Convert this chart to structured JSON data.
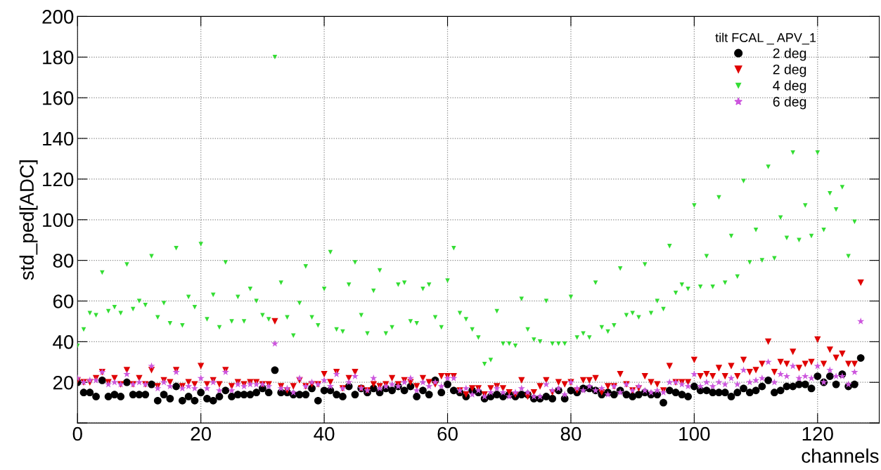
{
  "chart_data": {
    "type": "scatter",
    "xlabel": "channels",
    "ylabel": "std_ped[ADC]",
    "legend_title": "tilt FCAL _ APV_1",
    "legend": "top right",
    "grid": true,
    "xlim": [
      0,
      130
    ],
    "xticks": [
      0,
      20,
      40,
      60,
      80,
      100,
      120
    ],
    "ylim": [
      0,
      200
    ],
    "yticks": [
      {
        "value": 0,
        "label": null
      },
      20,
      40,
      60,
      80,
      100,
      120,
      140,
      160,
      180,
      200
    ],
    "x": [
      0,
      1,
      2,
      3,
      4,
      5,
      6,
      7,
      8,
      9,
      10,
      11,
      12,
      13,
      14,
      15,
      16,
      17,
      18,
      19,
      20,
      21,
      22,
      23,
      24,
      25,
      26,
      27,
      28,
      29,
      30,
      31,
      32,
      33,
      34,
      35,
      36,
      37,
      38,
      39,
      40,
      41,
      42,
      43,
      44,
      45,
      46,
      47,
      48,
      49,
      50,
      51,
      52,
      53,
      54,
      55,
      56,
      57,
      58,
      59,
      60,
      61,
      62,
      63,
      64,
      65,
      66,
      67,
      68,
      69,
      70,
      71,
      72,
      73,
      74,
      75,
      76,
      77,
      78,
      79,
      80,
      81,
      82,
      83,
      84,
      85,
      86,
      87,
      88,
      89,
      90,
      91,
      92,
      93,
      94,
      95,
      96,
      97,
      98,
      99,
      100,
      101,
      102,
      103,
      104,
      105,
      106,
      107,
      108,
      109,
      110,
      111,
      112,
      113,
      114,
      115,
      116,
      117,
      118,
      119,
      120,
      121,
      122,
      123,
      124,
      125,
      126,
      127
    ],
    "series": [
      {
        "name": "2 deg",
        "color": "#000000",
        "marker": "circle",
        "values": [
          20,
          15,
          15,
          13,
          21,
          13,
          14,
          13,
          20,
          14,
          14,
          14,
          19,
          11,
          14,
          12,
          18,
          11,
          13,
          11,
          15,
          12,
          11,
          13,
          16,
          13,
          14,
          14,
          14,
          15,
          17,
          15,
          26,
          15,
          15,
          14,
          14,
          14,
          17,
          11,
          16,
          16,
          14,
          13,
          18,
          14,
          17,
          15,
          17,
          15,
          17,
          16,
          18,
          16,
          18,
          13,
          16,
          14,
          21,
          15,
          19,
          16,
          15,
          13,
          16,
          15,
          12,
          13,
          14,
          13,
          14,
          13,
          14,
          14,
          12,
          12,
          13,
          12,
          16,
          12,
          16,
          15,
          17,
          17,
          16,
          14,
          15,
          14,
          16,
          14,
          13,
          14,
          15,
          14,
          14,
          10,
          16,
          15,
          14,
          13,
          18,
          16,
          16,
          15,
          15,
          15,
          13,
          15,
          17,
          15,
          16,
          18,
          21,
          15,
          16,
          18,
          18,
          19,
          19,
          17,
          23,
          20,
          23,
          19,
          24,
          18,
          19,
          32
        ]
      },
      {
        "name": "2 deg",
        "color": "#e00000",
        "marker": "triangle",
        "values": [
          21,
          20,
          20,
          22,
          25,
          20,
          22,
          19,
          26,
          19,
          22,
          19,
          26,
          18,
          21,
          20,
          26,
          18,
          20,
          19,
          28,
          19,
          21,
          19,
          26,
          18,
          20,
          19,
          20,
          20,
          19,
          19,
          50,
          18,
          16,
          18,
          21,
          18,
          19,
          19,
          24,
          20,
          25,
          17,
          22,
          25,
          17,
          16,
          19,
          18,
          19,
          22,
          19,
          21,
          20,
          18,
          22,
          20,
          19,
          23,
          23,
          23,
          16,
          14,
          17,
          17,
          14,
          17,
          18,
          17,
          15,
          14,
          21,
          13,
          15,
          18,
          21,
          15,
          20,
          19,
          20,
          16,
          21,
          21,
          22,
          15,
          18,
          18,
          24,
          19,
          16,
          17,
          23,
          20,
          19,
          16,
          28,
          20,
          20,
          20,
          31,
          23,
          24,
          23,
          27,
          23,
          28,
          23,
          31,
          25,
          26,
          29,
          40,
          25,
          30,
          29,
          35,
          27,
          29,
          30,
          41,
          29,
          36,
          32,
          34,
          29,
          29,
          69
        ]
      },
      {
        "name": "4 deg",
        "color": "#33dd33",
        "marker": "triangle",
        "values": [
          38,
          46,
          54,
          53,
          74,
          55,
          57,
          54,
          78,
          56,
          60,
          58,
          82,
          52,
          59,
          49,
          86,
          48,
          62,
          57,
          88,
          51,
          63,
          47,
          79,
          50,
          62,
          50,
          66,
          60,
          53,
          51,
          180,
          69,
          52,
          43,
          59,
          77,
          52,
          48,
          66,
          84,
          46,
          45,
          68,
          79,
          53,
          44,
          65,
          75,
          44,
          47,
          68,
          69,
          50,
          49,
          66,
          68,
          52,
          47,
          70,
          86,
          54,
          51,
          46,
          42,
          29,
          31,
          55,
          39,
          39,
          38,
          61,
          46,
          41,
          40,
          60,
          39,
          39,
          39,
          62,
          42,
          44,
          42,
          69,
          47,
          45,
          48,
          76,
          53,
          54,
          52,
          78,
          54,
          60,
          56,
          87,
          64,
          68,
          66,
          107,
          67,
          82,
          67,
          111,
          69,
          92,
          72,
          119,
          79,
          95,
          80,
          126,
          81,
          101,
          91,
          133,
          90,
          107,
          92,
          133,
          95,
          113,
          105,
          116,
          82,
          99,
          null
        ]
      },
      {
        "name": "6 deg",
        "color": "#cc55dd",
        "marker": "star",
        "values": [
          22,
          20,
          21,
          21,
          25,
          19,
          20,
          19,
          24,
          19,
          20,
          19,
          28,
          17,
          20,
          18,
          25,
          17,
          18,
          17,
          22,
          17,
          20,
          16,
          25,
          16,
          19,
          18,
          19,
          19,
          19,
          18,
          39,
          17,
          17,
          15,
          22,
          18,
          20,
          19,
          21,
          18,
          24,
          17,
          20,
          23,
          17,
          16,
          22,
          17,
          18,
          19,
          18,
          20,
          22,
          16,
          20,
          18,
          20,
          18,
          22,
          22,
          16,
          17,
          14,
          16,
          13,
          15,
          17,
          15,
          13,
          15,
          17,
          15,
          13,
          13,
          19,
          16,
          17,
          14,
          20,
          17,
          16,
          18,
          16,
          17,
          14,
          18,
          15,
          19,
          16,
          18,
          16,
          15,
          16,
          15,
          20,
          20,
          19,
          18,
          24,
          18,
          20,
          18,
          20,
          19,
          22,
          19,
          26,
          20,
          21,
          22,
          30,
          20,
          24,
          23,
          28,
          22,
          23,
          22,
          28,
          20,
          26,
          23,
          23,
          19,
          25,
          50
        ]
      }
    ]
  }
}
